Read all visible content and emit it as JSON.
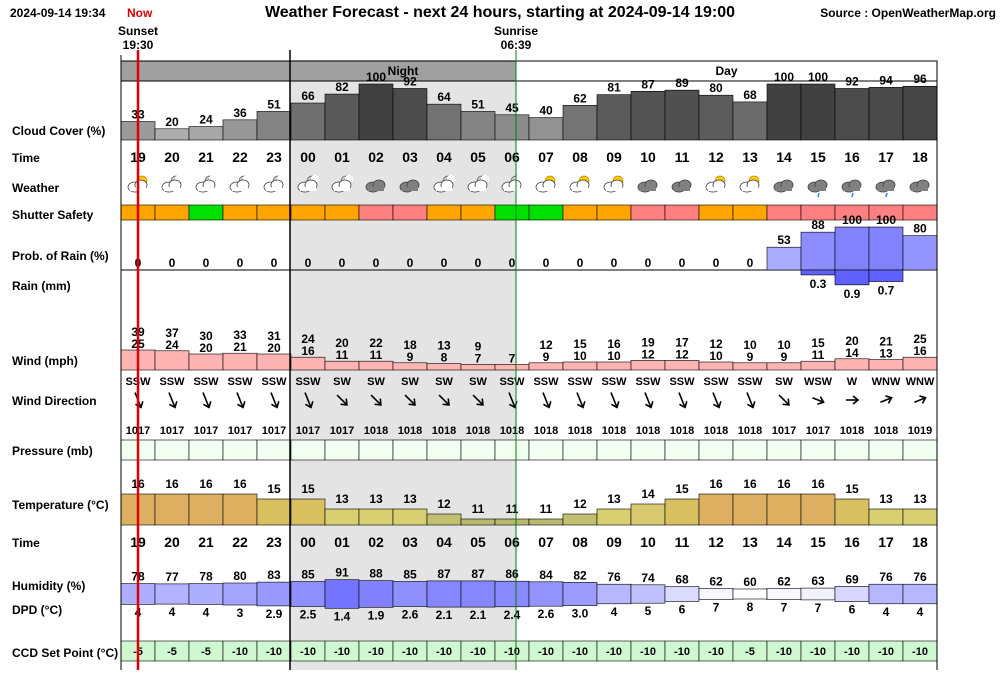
{
  "header": {
    "timestamp": "2024-09-14 19:34",
    "now_label": "Now",
    "title": "Weather Forecast - next 24 hours, starting at 2024-09-14 19:00",
    "source": "Source : OpenWeatherMap.org"
  },
  "sun": {
    "sunset_label": "Sunset",
    "sunset_time": "19:30",
    "sunrise_label": "Sunrise",
    "sunrise_time": "06:39"
  },
  "bands": {
    "night": "Night",
    "day": "Day"
  },
  "labels": {
    "cloud": "Cloud Cover (%)",
    "time": "Time",
    "weather": "Weather",
    "shutter": "Shutter Safety",
    "prob_rain": "Prob. of Rain (%)",
    "rain": "Rain (mm)",
    "wind": "Wind (mph)",
    "wind_dir": "Wind Direction",
    "pressure": "Pressure (mb)",
    "temperature": "Temperature (°C)",
    "time2": "Time",
    "humidity": "Humidity (%)",
    "dpd": "DPD (°C)",
    "ccd": "CCD Set Point (°C)"
  },
  "chart_data": {
    "type": "table",
    "hours": [
      "19",
      "20",
      "21",
      "22",
      "23",
      "00",
      "01",
      "02",
      "03",
      "04",
      "05",
      "06",
      "07",
      "08",
      "09",
      "10",
      "11",
      "12",
      "13",
      "14",
      "15",
      "16",
      "17",
      "18"
    ],
    "cloud_cover": [
      33,
      20,
      24,
      36,
      51,
      66,
      82,
      100,
      92,
      64,
      51,
      45,
      40,
      62,
      81,
      87,
      89,
      80,
      68,
      100,
      100,
      92,
      94,
      96
    ],
    "weather_icons": [
      "partly-cloudy-sun",
      "partly-cloudy-moon",
      "partly-cloudy-moon",
      "partly-cloudy-moon",
      "partly-cloudy-moon",
      "partly-cloudy-moon",
      "partly-cloudy-moon",
      "cloud",
      "cloud",
      "partly-cloudy-moon",
      "partly-cloudy-moon",
      "partly-cloudy-moon",
      "partly-cloudy-sun",
      "partly-cloudy-sun",
      "partly-cloudy-sun",
      "cloud",
      "cloud",
      "partly-cloudy-sun",
      "partly-cloudy-sun",
      "cloud",
      "rain-cloud",
      "rain-cloud",
      "rain-cloud",
      "cloud"
    ],
    "shutter_safety": [
      "amber",
      "amber",
      "green",
      "amber",
      "amber",
      "amber",
      "amber",
      "red",
      "red",
      "amber",
      "amber",
      "green",
      "green",
      "amber",
      "amber",
      "red",
      "red",
      "amber",
      "amber",
      "red",
      "red",
      "red",
      "red",
      "red"
    ],
    "shutter_colors": {
      "amber": "#ffa500",
      "green": "#00e000",
      "red": "#ff8080"
    },
    "prob_rain": [
      0,
      0,
      0,
      0,
      0,
      0,
      0,
      0,
      0,
      0,
      0,
      0,
      0,
      0,
      0,
      0,
      0,
      0,
      0,
      53,
      88,
      100,
      100,
      80
    ],
    "rain_mm": [
      null,
      null,
      null,
      null,
      null,
      null,
      null,
      null,
      null,
      null,
      null,
      null,
      null,
      null,
      null,
      null,
      null,
      null,
      null,
      null,
      0.3,
      0.9,
      0.7,
      null
    ],
    "wind_gust": [
      39,
      37,
      30,
      33,
      31,
      24,
      20,
      22,
      18,
      13,
      9,
      null,
      12,
      15,
      16,
      19,
      17,
      12,
      10,
      10,
      15,
      20,
      21,
      25
    ],
    "wind_speed": [
      25,
      24,
      20,
      21,
      20,
      16,
      11,
      11,
      9,
      8,
      7,
      7,
      9,
      10,
      10,
      12,
      12,
      10,
      9,
      9,
      11,
      14,
      13,
      16
    ],
    "wind_direction": [
      "SSW",
      "SSW",
      "SSW",
      "SSW",
      "SSW",
      "SSW",
      "SW",
      "SW",
      "SW",
      "SW",
      "SW",
      "SSW",
      "SSW",
      "SSW",
      "SSW",
      "SSW",
      "SSW",
      "SSW",
      "SSW",
      "SW",
      "WSW",
      "W",
      "WNW",
      "WNW"
    ],
    "pressure": [
      1017,
      1017,
      1017,
      1017,
      1017,
      1017,
      1017,
      1018,
      1018,
      1018,
      1018,
      1018,
      1018,
      1018,
      1018,
      1018,
      1018,
      1018,
      1018,
      1017,
      1017,
      1018,
      1018,
      1019
    ],
    "temperature": [
      16,
      16,
      16,
      16,
      15,
      15,
      13,
      13,
      13,
      12,
      11,
      11,
      11,
      12,
      13,
      14,
      15,
      16,
      16,
      16,
      16,
      15,
      13,
      13
    ],
    "humidity": [
      78,
      77,
      78,
      80,
      83,
      85,
      91,
      88,
      85,
      87,
      87,
      86,
      84,
      82,
      76,
      74,
      68,
      62,
      60,
      62,
      63,
      69,
      76,
      76
    ],
    "dpd": [
      "4",
      "4",
      "4",
      "3",
      "2.9",
      "2.5",
      "1.4",
      "1.9",
      "2.6",
      "2.1",
      "2.1",
      "2.4",
      "2.6",
      "3.0",
      "4",
      "5",
      "6",
      "7",
      "8",
      "7",
      "7",
      "6",
      "4",
      "4"
    ],
    "ccd_set_point": [
      -5,
      -5,
      -5,
      -10,
      -10,
      -10,
      -10,
      -10,
      -10,
      -10,
      -10,
      -10,
      -10,
      -10,
      -10,
      -10,
      -10,
      -10,
      -5,
      -10,
      -10,
      -10,
      -10,
      -10
    ],
    "night_range_hours": [
      "23:30",
      "06:39"
    ]
  }
}
